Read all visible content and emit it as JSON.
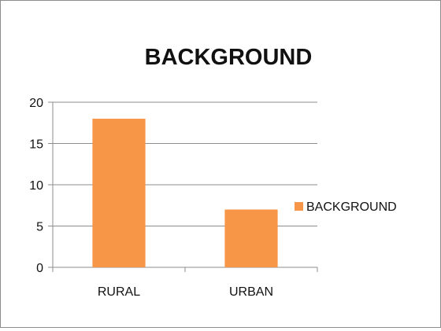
{
  "chart_data": {
    "type": "bar",
    "title": "BACKGROUND",
    "categories": [
      "RURAL",
      "URBAN"
    ],
    "series": [
      {
        "name": "BACKGROUND",
        "values": [
          18,
          7
        ],
        "color": "#f79646"
      }
    ],
    "ylim": [
      0,
      20
    ],
    "yticks": [
      "0",
      "5",
      "10",
      "15",
      "20"
    ],
    "xlabel": "",
    "ylabel": "",
    "grid": true,
    "legend": "right"
  }
}
